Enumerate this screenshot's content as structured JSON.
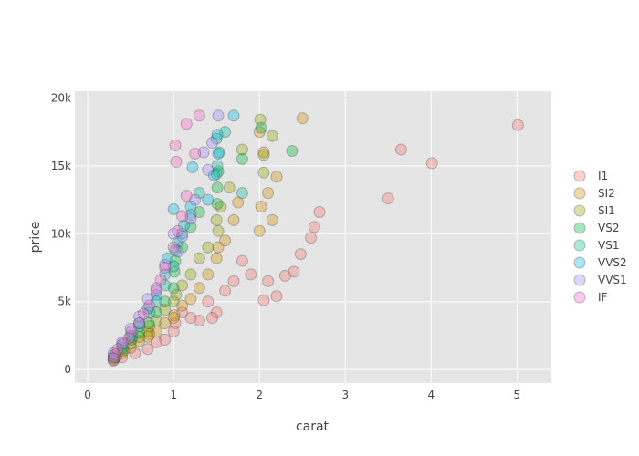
{
  "chart_data": {
    "type": "scatter",
    "xlabel": "carat",
    "ylabel": "price",
    "xlim": [
      -0.15,
      5.4
    ],
    "ylim": [
      -1000,
      20500
    ],
    "x_ticks": [
      {
        "value": 0,
        "label": "0"
      },
      {
        "value": 1,
        "label": "1"
      },
      {
        "value": 2,
        "label": "2"
      },
      {
        "value": 3,
        "label": "3"
      },
      {
        "value": 4,
        "label": "4"
      },
      {
        "value": 5,
        "label": "5"
      }
    ],
    "y_ticks": [
      {
        "value": 0,
        "label": "0"
      },
      {
        "value": 5000,
        "label": "5k"
      },
      {
        "value": 10000,
        "label": "10k"
      },
      {
        "value": 15000,
        "label": "15k"
      },
      {
        "value": 20000,
        "label": "20k"
      }
    ],
    "grid": true,
    "legend_position": "right",
    "plot_background": "#e5e5e5",
    "marker_opacity": 0.35,
    "series": [
      {
        "name": "I1",
        "color": "#f8766d",
        "points": [
          [
            5.01,
            18000
          ],
          [
            4.01,
            15200
          ],
          [
            3.65,
            16200
          ],
          [
            3.5,
            12600
          ],
          [
            2.7,
            11600
          ],
          [
            2.64,
            10500
          ],
          [
            2.6,
            9700
          ],
          [
            2.48,
            8500
          ],
          [
            2.4,
            7200
          ],
          [
            2.3,
            6900
          ],
          [
            2.2,
            5400
          ],
          [
            2.1,
            6500
          ],
          [
            2.05,
            5100
          ],
          [
            1.9,
            7000
          ],
          [
            1.8,
            8000
          ],
          [
            1.7,
            6500
          ],
          [
            1.6,
            5800
          ],
          [
            1.5,
            4200
          ],
          [
            1.45,
            3800
          ],
          [
            1.4,
            5000
          ],
          [
            1.3,
            3600
          ],
          [
            1.2,
            3800
          ],
          [
            1.1,
            4200
          ],
          [
            1.02,
            3400
          ],
          [
            1.0,
            2800
          ],
          [
            0.9,
            2200
          ],
          [
            0.8,
            2000
          ],
          [
            0.7,
            1500
          ],
          [
            0.55,
            1200
          ],
          [
            0.4,
            900
          ],
          [
            0.3,
            650
          ]
        ]
      },
      {
        "name": "SI2",
        "color": "#d39200",
        "points": [
          [
            2.5,
            18500
          ],
          [
            2.0,
            17500
          ],
          [
            2.05,
            16000
          ],
          [
            2.2,
            14200
          ],
          [
            2.1,
            13000
          ],
          [
            2.02,
            12000
          ],
          [
            2.15,
            11000
          ],
          [
            2.0,
            10200
          ],
          [
            1.75,
            12300
          ],
          [
            1.7,
            11000
          ],
          [
            1.6,
            9500
          ],
          [
            1.52,
            9000
          ],
          [
            1.5,
            8200
          ],
          [
            1.4,
            7000
          ],
          [
            1.3,
            6000
          ],
          [
            1.2,
            5200
          ],
          [
            1.1,
            4700
          ],
          [
            1.01,
            4000
          ],
          [
            1.0,
            3800
          ],
          [
            0.9,
            3400
          ],
          [
            0.8,
            2800
          ],
          [
            0.72,
            2600
          ],
          [
            0.7,
            2400
          ],
          [
            0.6,
            2100
          ],
          [
            0.5,
            1600
          ],
          [
            0.4,
            1200
          ],
          [
            0.33,
            900
          ],
          [
            0.3,
            700
          ]
        ]
      },
      {
        "name": "SI1",
        "color": "#93aa00",
        "points": [
          [
            2.01,
            18400
          ],
          [
            2.15,
            17200
          ],
          [
            2.05,
            15800
          ],
          [
            1.8,
            16200
          ],
          [
            2.05,
            14500
          ],
          [
            1.65,
            13400
          ],
          [
            1.55,
            12000
          ],
          [
            1.5,
            11000
          ],
          [
            1.52,
            10200
          ],
          [
            1.4,
            9000
          ],
          [
            1.3,
            8200
          ],
          [
            1.2,
            7000
          ],
          [
            1.1,
            6200
          ],
          [
            1.03,
            5500
          ],
          [
            1.0,
            5000
          ],
          [
            0.9,
            4400
          ],
          [
            0.8,
            3600
          ],
          [
            0.72,
            3200
          ],
          [
            0.7,
            2800
          ],
          [
            0.6,
            2400
          ],
          [
            0.5,
            1900
          ],
          [
            0.42,
            1400
          ],
          [
            0.32,
            900
          ]
        ]
      },
      {
        "name": "VS2",
        "color": "#00ba38",
        "points": [
          [
            2.02,
            17800
          ],
          [
            2.38,
            16100
          ],
          [
            1.8,
            15500
          ],
          [
            1.52,
            14600
          ],
          [
            1.51,
            13400
          ],
          [
            1.51,
            12200
          ],
          [
            1.3,
            11600
          ],
          [
            1.2,
            10500
          ],
          [
            1.1,
            9000
          ],
          [
            1.02,
            8000
          ],
          [
            1.01,
            7200
          ],
          [
            1.0,
            6000
          ],
          [
            0.9,
            5000
          ],
          [
            0.8,
            4200
          ],
          [
            0.71,
            3400
          ],
          [
            0.6,
            2700
          ],
          [
            0.51,
            2200
          ],
          [
            0.41,
            1500
          ],
          [
            0.31,
            900
          ]
        ]
      },
      {
        "name": "VS1",
        "color": "#00c19f",
        "points": [
          [
            1.5,
            17000
          ],
          [
            1.6,
            17500
          ],
          [
            1.8,
            13000
          ],
          [
            1.53,
            16000
          ],
          [
            1.51,
            15000
          ],
          [
            1.5,
            14400
          ],
          [
            1.3,
            13000
          ],
          [
            1.2,
            11400
          ],
          [
            1.1,
            10000
          ],
          [
            1.02,
            8800
          ],
          [
            1.0,
            7600
          ],
          [
            0.9,
            6200
          ],
          [
            0.8,
            5000
          ],
          [
            0.72,
            4200
          ],
          [
            0.6,
            3200
          ],
          [
            0.52,
            2400
          ],
          [
            0.4,
            1600
          ],
          [
            0.3,
            900
          ]
        ]
      },
      {
        "name": "VVS2",
        "color": "#00b9e3",
        "points": [
          [
            1.7,
            18700
          ],
          [
            1.51,
            17300
          ],
          [
            1.52,
            15900
          ],
          [
            1.47,
            14300
          ],
          [
            1.4,
            12500
          ],
          [
            1.22,
            14900
          ],
          [
            1.2,
            12000
          ],
          [
            1.12,
            10600
          ],
          [
            1.05,
            9400
          ],
          [
            1.0,
            11800
          ],
          [
            0.93,
            8200
          ],
          [
            0.9,
            7000
          ],
          [
            0.8,
            5500
          ],
          [
            0.7,
            4500
          ],
          [
            0.6,
            3400
          ],
          [
            0.5,
            2500
          ],
          [
            0.4,
            1800
          ],
          [
            0.3,
            1000
          ]
        ]
      },
      {
        "name": "VVS1",
        "color": "#9f8cff",
        "points": [
          [
            1.52,
            18700
          ],
          [
            1.45,
            16700
          ],
          [
            1.4,
            14700
          ],
          [
            1.35,
            16000
          ],
          [
            1.25,
            12500
          ],
          [
            1.2,
            11100
          ],
          [
            1.1,
            9800
          ],
          [
            1.05,
            8700
          ],
          [
            1.0,
            10000
          ],
          [
            0.9,
            7700
          ],
          [
            0.8,
            6000
          ],
          [
            0.7,
            5200
          ],
          [
            0.6,
            3900
          ],
          [
            0.5,
            3000
          ],
          [
            0.4,
            2000
          ],
          [
            0.3,
            1200
          ]
        ]
      },
      {
        "name": "IF",
        "color": "#ff61c3",
        "points": [
          [
            1.3,
            18700
          ],
          [
            1.15,
            18100
          ],
          [
            1.02,
            16500
          ],
          [
            1.03,
            15300
          ],
          [
            1.25,
            15900
          ],
          [
            1.15,
            12800
          ],
          [
            1.1,
            11300
          ],
          [
            1.05,
            10200
          ],
          [
            1.0,
            9000
          ],
          [
            0.9,
            7500
          ],
          [
            0.85,
            6600
          ],
          [
            0.8,
            5800
          ],
          [
            0.72,
            4700
          ],
          [
            0.65,
            4100
          ],
          [
            0.6,
            3400
          ],
          [
            0.51,
            2800
          ],
          [
            0.48,
            2300
          ],
          [
            0.41,
            1900
          ],
          [
            0.35,
            1500
          ],
          [
            0.32,
            1100
          ],
          [
            0.3,
            800
          ]
        ]
      }
    ]
  }
}
